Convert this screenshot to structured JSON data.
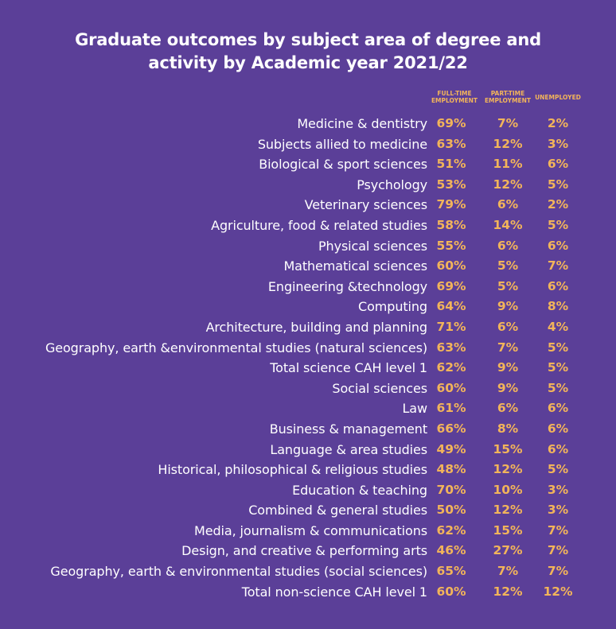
{
  "chart_data": {
    "type": "table",
    "title_line1": "Graduate outcomes by subject area of degree and",
    "title_line2": "activity by Academic year 2021/22",
    "columns": [
      "FULL-TIME EMPLOYMENT",
      "PART-TIME EMPLOYMENT",
      "UNEMPLOYED"
    ],
    "column_heads": [
      {
        "l1": "FULL-TIME",
        "l2": "EMPLOYMENT"
      },
      {
        "l1": "PART-TIME",
        "l2": "EMPLOYMENT"
      },
      {
        "l1": "UNEMPLOYED",
        "l2": ""
      }
    ],
    "rows": [
      {
        "label": "Medicine & dentistry",
        "values": [
          "69%",
          "7%",
          "2%"
        ]
      },
      {
        "label": "Subjects allied to medicine",
        "values": [
          "63%",
          "12%",
          "3%"
        ]
      },
      {
        "label": "Biological & sport sciences",
        "values": [
          "51%",
          "11%",
          "6%"
        ]
      },
      {
        "label": "Psychology",
        "values": [
          "53%",
          "12%",
          "5%"
        ]
      },
      {
        "label": "Veterinary sciences",
        "values": [
          "79%",
          "6%",
          "2%"
        ]
      },
      {
        "label": "Agriculture, food & related studies",
        "values": [
          "58%",
          "14%",
          "5%"
        ]
      },
      {
        "label": "Physical sciences",
        "values": [
          "55%",
          "6%",
          "6%"
        ]
      },
      {
        "label": "Mathematical sciences",
        "values": [
          "60%",
          "5%",
          "7%"
        ]
      },
      {
        "label": "Engineering &technology",
        "values": [
          "69%",
          "5%",
          "6%"
        ]
      },
      {
        "label": "Computing",
        "values": [
          "64%",
          "9%",
          "8%"
        ]
      },
      {
        "label": "Architecture, building and planning",
        "values": [
          "71%",
          "6%",
          "4%"
        ]
      },
      {
        "label": "Geography, earth &environmental studies (natural sciences)",
        "values": [
          "63%",
          "7%",
          "5%"
        ]
      },
      {
        "label": "Total science CAH level 1",
        "values": [
          "62%",
          "9%",
          "5%"
        ]
      },
      {
        "label": "Social sciences",
        "values": [
          "60%",
          "9%",
          "5%"
        ]
      },
      {
        "label": "Law",
        "values": [
          "61%",
          "6%",
          "6%"
        ]
      },
      {
        "label": "Business & management",
        "values": [
          "66%",
          "8%",
          "6%"
        ]
      },
      {
        "label": "Language & area studies",
        "values": [
          "49%",
          "15%",
          "6%"
        ]
      },
      {
        "label": "Historical, philosophical & religious studies",
        "values": [
          "48%",
          "12%",
          "5%"
        ]
      },
      {
        "label": "Education & teaching",
        "values": [
          "70%",
          "10%",
          "3%"
        ]
      },
      {
        "label": "Combined & general studies",
        "values": [
          "50%",
          "12%",
          "3%"
        ]
      },
      {
        "label": "Media, journalism & communications",
        "values": [
          "62%",
          "15%",
          "7%"
        ]
      },
      {
        "label": "Design, and creative & performing arts",
        "values": [
          "46%",
          "27%",
          "7%"
        ]
      },
      {
        "label": "Geography, earth & environmental studies (social sciences)",
        "values": [
          "65%",
          "7%",
          "7%"
        ]
      },
      {
        "label": "Total non-science CAH level 1",
        "values": [
          "60%",
          "12%",
          "12%"
        ]
      }
    ]
  },
  "colors": {
    "background": "#5b3f98",
    "text": "#ffffff",
    "accent": "#f2b45a"
  }
}
